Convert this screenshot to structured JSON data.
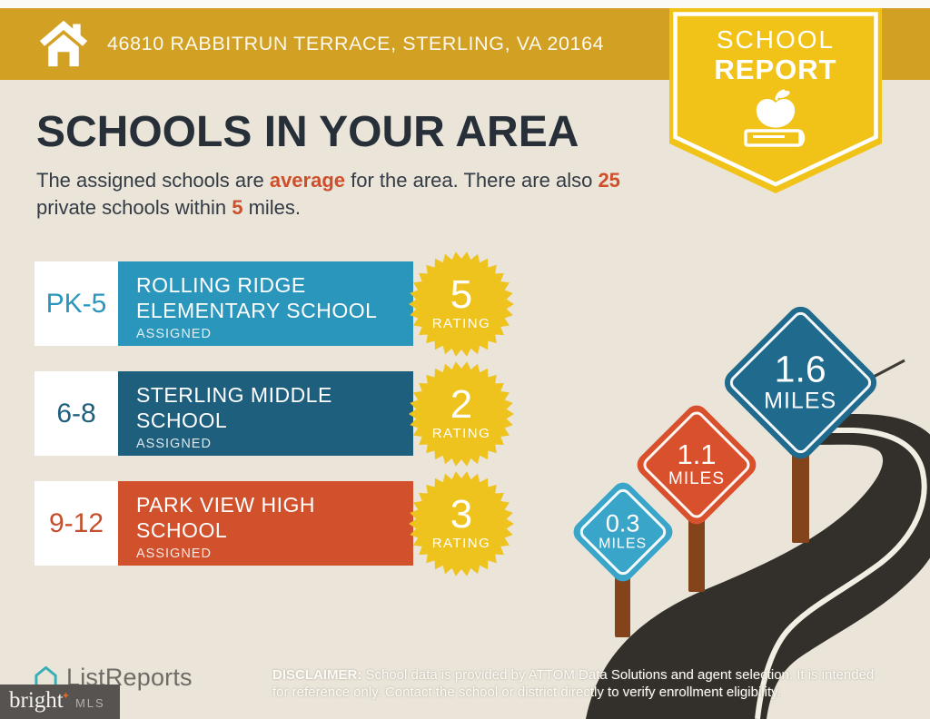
{
  "header": {
    "address": "46810 RABBITRUN TERRACE, STERLING, VA 20164"
  },
  "ribbon": {
    "line1": "SCHOOL",
    "line2": "REPORT"
  },
  "title": "SCHOOLS IN YOUR AREA",
  "intro": {
    "text_1": "The assigned schools are ",
    "highlight_1": "average",
    "text_2": " for the area. There are also ",
    "highlight_2": "25",
    "text_3": "private schools within ",
    "highlight_3": "5",
    "text_4": " miles."
  },
  "schools": [
    {
      "grades": "PK-5",
      "name_line1": "ROLLING RIDGE",
      "name_line2": "ELEMENTARY SCHOOL",
      "status": "ASSIGNED",
      "rating": "5",
      "rating_label": "RATING",
      "color": "#2B96BC"
    },
    {
      "grades": "6-8",
      "name_line1": "STERLING MIDDLE",
      "name_line2": "SCHOOL",
      "status": "ASSIGNED",
      "rating": "2",
      "rating_label": "RATING",
      "color": "#1E5F7E"
    },
    {
      "grades": "9-12",
      "name_line1": "PARK VIEW HIGH",
      "name_line2": "SCHOOL",
      "status": "ASSIGNED",
      "rating": "3",
      "rating_label": "RATING",
      "color": "#D2512D"
    }
  ],
  "signs": [
    {
      "distance": "0.3",
      "unit": "MILES",
      "color": "#39A6C9"
    },
    {
      "distance": "1.1",
      "unit": "MILES",
      "color": "#D8502C"
    },
    {
      "distance": "1.6",
      "unit": "MILES",
      "color": "#1F6A8D"
    }
  ],
  "footer": {
    "listreports_label": "ListReports",
    "bright_word": "bright",
    "bright_mls": "MLS",
    "disclaimer_label": "DISCLAIMER:",
    "disclaimer_line1": " School data is provided by ATTOM Data Solutions and agent selection. It is intended",
    "disclaimer_line2": "for reference only. Contact the school or district directly to verify enrollment eligibility."
  },
  "colors": {
    "header_bar": "#D2A023",
    "ribbon": "#F1C319",
    "background": "#EAE4D9",
    "navy_text": "#272F38",
    "accent_red": "#CD4F2C",
    "rating_badge": "#EFC31E",
    "road": "#33302C",
    "road_line": "#F2EEE3",
    "sign_post": "#83431B"
  }
}
